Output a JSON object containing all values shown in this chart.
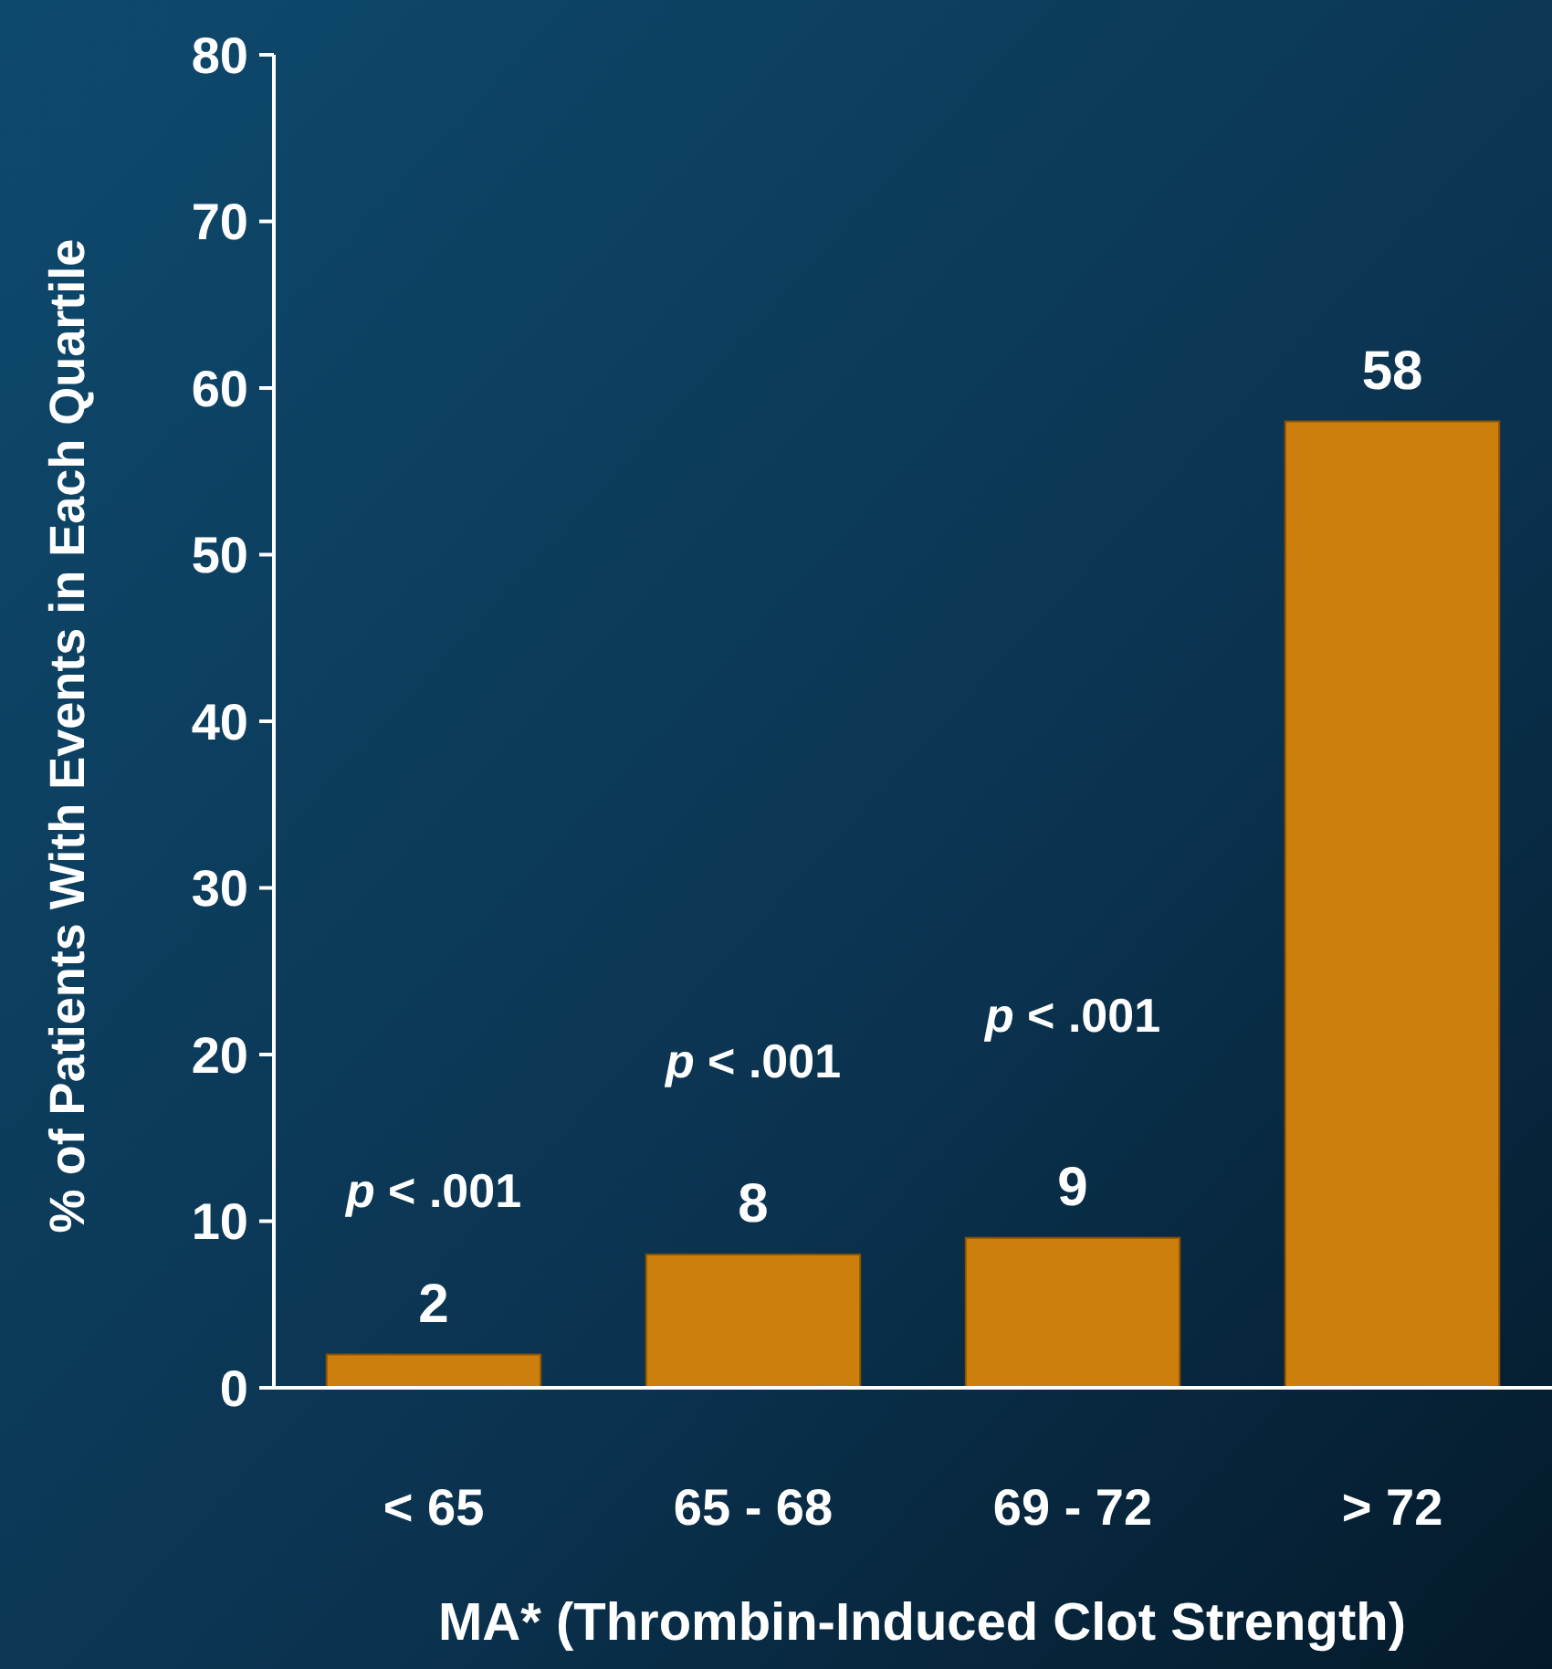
{
  "chart_data": {
    "type": "bar",
    "xlabel": "MA* (Thrombin-Induced Clot Strength)",
    "ylabel": "% of Patients With Events in Each Quartile",
    "categories": [
      "< 65",
      "65 - 68",
      "69 - 72",
      "> 72"
    ],
    "values": [
      2,
      8,
      9,
      58
    ],
    "color": "#cc7f0c",
    "ylim": [
      0,
      80
    ],
    "yticks": [
      0,
      10,
      20,
      30,
      40,
      50,
      60,
      70,
      80
    ],
    "data_labels": true,
    "annotations": [
      "p < .001",
      "p < .001",
      "p < .001"
    ]
  }
}
